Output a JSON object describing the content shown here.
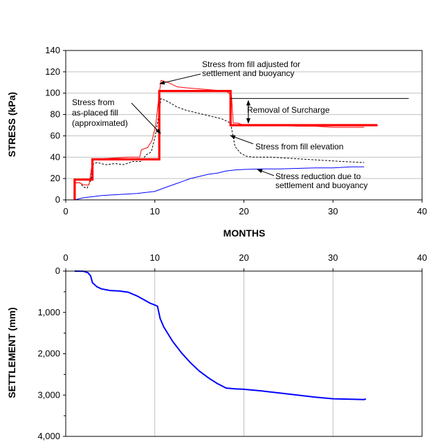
{
  "chart_data": [
    {
      "type": "line",
      "xlabel": "MONTHS",
      "ylabel": "STRESS (kPa)",
      "xlim": [
        0,
        40
      ],
      "ylim": [
        0,
        140
      ],
      "x_ticks": [
        "0",
        "10",
        "20",
        "30",
        "40"
      ],
      "y_ticks": [
        "0",
        "20",
        "40",
        "60",
        "80",
        "100",
        "120",
        "140"
      ],
      "grid": "horizontal",
      "series": [
        {
          "key": "fill_elevation",
          "color": "#000000",
          "style": "dashed",
          "points": [
            [
              1.0,
              0
            ],
            [
              1.05,
              16
            ],
            [
              1.6,
              16
            ],
            [
              2.0,
              12
            ],
            [
              2.4,
              11
            ],
            [
              2.8,
              18
            ],
            [
              3.0,
              33
            ],
            [
              3.5,
              35
            ],
            [
              4.5,
              33
            ],
            [
              5.5,
              34
            ],
            [
              6.5,
              33
            ],
            [
              7.5,
              36
            ],
            [
              8.5,
              36
            ],
            [
              9.0,
              42
            ],
            [
              9.6,
              45
            ],
            [
              10.0,
              58
            ],
            [
              10.3,
              72
            ],
            [
              10.7,
              95
            ],
            [
              11.5,
              92
            ],
            [
              12.5,
              87
            ],
            [
              13.5,
              84
            ],
            [
              14.5,
              82
            ],
            [
              15.5,
              80
            ],
            [
              16.5,
              78
            ],
            [
              17.5,
              76
            ],
            [
              18.0,
              74
            ],
            [
              18.5,
              72
            ],
            [
              19.0,
              50
            ],
            [
              19.6,
              44
            ],
            [
              20.2,
              41
            ],
            [
              21,
              40
            ],
            [
              23,
              40
            ],
            [
              25,
              39
            ],
            [
              27,
              38
            ],
            [
              29,
              37
            ],
            [
              31,
              36
            ],
            [
              33.5,
              35
            ]
          ]
        },
        {
          "key": "fill_adjusted",
          "color": "#ff0000",
          "style": "thin",
          "points": [
            [
              1.0,
              0
            ],
            [
              1.05,
              16
            ],
            [
              1.6,
              16
            ],
            [
              2.0,
              14
            ],
            [
              2.6,
              14
            ],
            [
              2.9,
              30
            ],
            [
              3.0,
              38
            ],
            [
              5,
              39
            ],
            [
              7,
              40
            ],
            [
              8.3,
              40
            ],
            [
              8.5,
              47
            ],
            [
              9.2,
              49
            ],
            [
              9.7,
              56
            ],
            [
              10.1,
              70
            ],
            [
              10.5,
              100
            ],
            [
              10.7,
              112
            ],
            [
              11.5,
              110
            ],
            [
              12.5,
              106
            ],
            [
              13.5,
              105
            ],
            [
              15,
              104
            ],
            [
              16.5,
              103
            ],
            [
              18,
              102
            ],
            [
              18.6,
              98
            ],
            [
              18.8,
              72
            ],
            [
              19.3,
              72
            ],
            [
              20,
              70
            ],
            [
              22,
              70
            ],
            [
              24,
              70
            ],
            [
              26,
              69
            ],
            [
              28,
              69
            ],
            [
              30,
              68
            ],
            [
              32,
              68
            ],
            [
              33.5,
              68
            ]
          ]
        },
        {
          "key": "stress_reduction",
          "color": "#0000ff",
          "style": "thin",
          "points": [
            [
              1.0,
              0
            ],
            [
              2,
              2
            ],
            [
              3,
              3
            ],
            [
              4,
              4
            ],
            [
              6,
              5
            ],
            [
              8,
              6
            ],
            [
              10,
              8
            ],
            [
              11,
              11
            ],
            [
              12,
              14
            ],
            [
              13,
              17
            ],
            [
              14,
              20
            ],
            [
              15,
              22
            ],
            [
              16,
              24
            ],
            [
              17,
              25
            ],
            [
              18,
              27
            ],
            [
              19,
              28
            ],
            [
              20,
              28.5
            ],
            [
              22,
              29
            ],
            [
              24,
              29
            ],
            [
              26,
              29.5
            ],
            [
              28,
              30
            ],
            [
              30,
              30
            ],
            [
              32,
              31
            ],
            [
              33.5,
              31
            ]
          ]
        },
        {
          "key": "fill_approx",
          "color": "#ff0000",
          "style": "thick",
          "points": [
            [
              1,
              0
            ],
            [
              1,
              19
            ],
            [
              3,
              19
            ],
            [
              3,
              38
            ],
            [
              10.5,
              38
            ],
            [
              10.5,
              102
            ],
            [
              18.5,
              102
            ],
            [
              18.5,
              70
            ],
            [
              35,
              70
            ]
          ]
        },
        {
          "key": "surcharge_level",
          "color": "#000000",
          "style": "thin",
          "points": [
            [
              18.5,
              95
            ],
            [
              38.5,
              95
            ]
          ]
        }
      ],
      "annotations": [
        {
          "key": "a1",
          "lines": [
            "Stress from fill adjusted for",
            "settlement and buoyancy"
          ]
        },
        {
          "key": "a2",
          "lines": [
            "Stress from",
            "as-placed fill",
            "(approximated)"
          ]
        },
        {
          "key": "a3",
          "lines": [
            "Removal of Surcharge"
          ]
        },
        {
          "key": "a4",
          "lines": [
            "Stress from fill elevation"
          ]
        },
        {
          "key": "a5",
          "lines": [
            "Stress reduction due to",
            "settlement and buoyancy"
          ]
        }
      ]
    },
    {
      "type": "line",
      "xlabel": "",
      "ylabel": "SETTLEMENT (mm)",
      "xlim": [
        0,
        40
      ],
      "ylim": [
        4000,
        0
      ],
      "x_ticks": [
        "0",
        "10",
        "20",
        "30",
        "40"
      ],
      "y_ticks": [
        "0",
        "1,000",
        "2,000",
        "3,000",
        "4,000"
      ],
      "grid": "vertical",
      "series": [
        {
          "key": "settlement",
          "color": "#0000ff",
          "points": [
            [
              1,
              0
            ],
            [
              2,
              5
            ],
            [
              2.5,
              40
            ],
            [
              2.8,
              120
            ],
            [
              3,
              280
            ],
            [
              3.5,
              380
            ],
            [
              4,
              430
            ],
            [
              5,
              470
            ],
            [
              6,
              480
            ],
            [
              7,
              510
            ],
            [
              8,
              600
            ],
            [
              9,
              720
            ],
            [
              9.5,
              780
            ],
            [
              10,
              820
            ],
            [
              10.3,
              850
            ],
            [
              10.6,
              1150
            ],
            [
              11,
              1350
            ],
            [
              12,
              1700
            ],
            [
              13,
              1980
            ],
            [
              14,
              2220
            ],
            [
              15,
              2420
            ],
            [
              16,
              2580
            ],
            [
              17,
              2720
            ],
            [
              18,
              2830
            ],
            [
              19,
              2850
            ],
            [
              20,
              2860
            ],
            [
              22,
              2900
            ],
            [
              24,
              2950
            ],
            [
              26,
              3000
            ],
            [
              28,
              3050
            ],
            [
              30,
              3090
            ],
            [
              32,
              3100
            ],
            [
              33.5,
              3110
            ],
            [
              33.7,
              3090
            ]
          ]
        }
      ]
    }
  ]
}
